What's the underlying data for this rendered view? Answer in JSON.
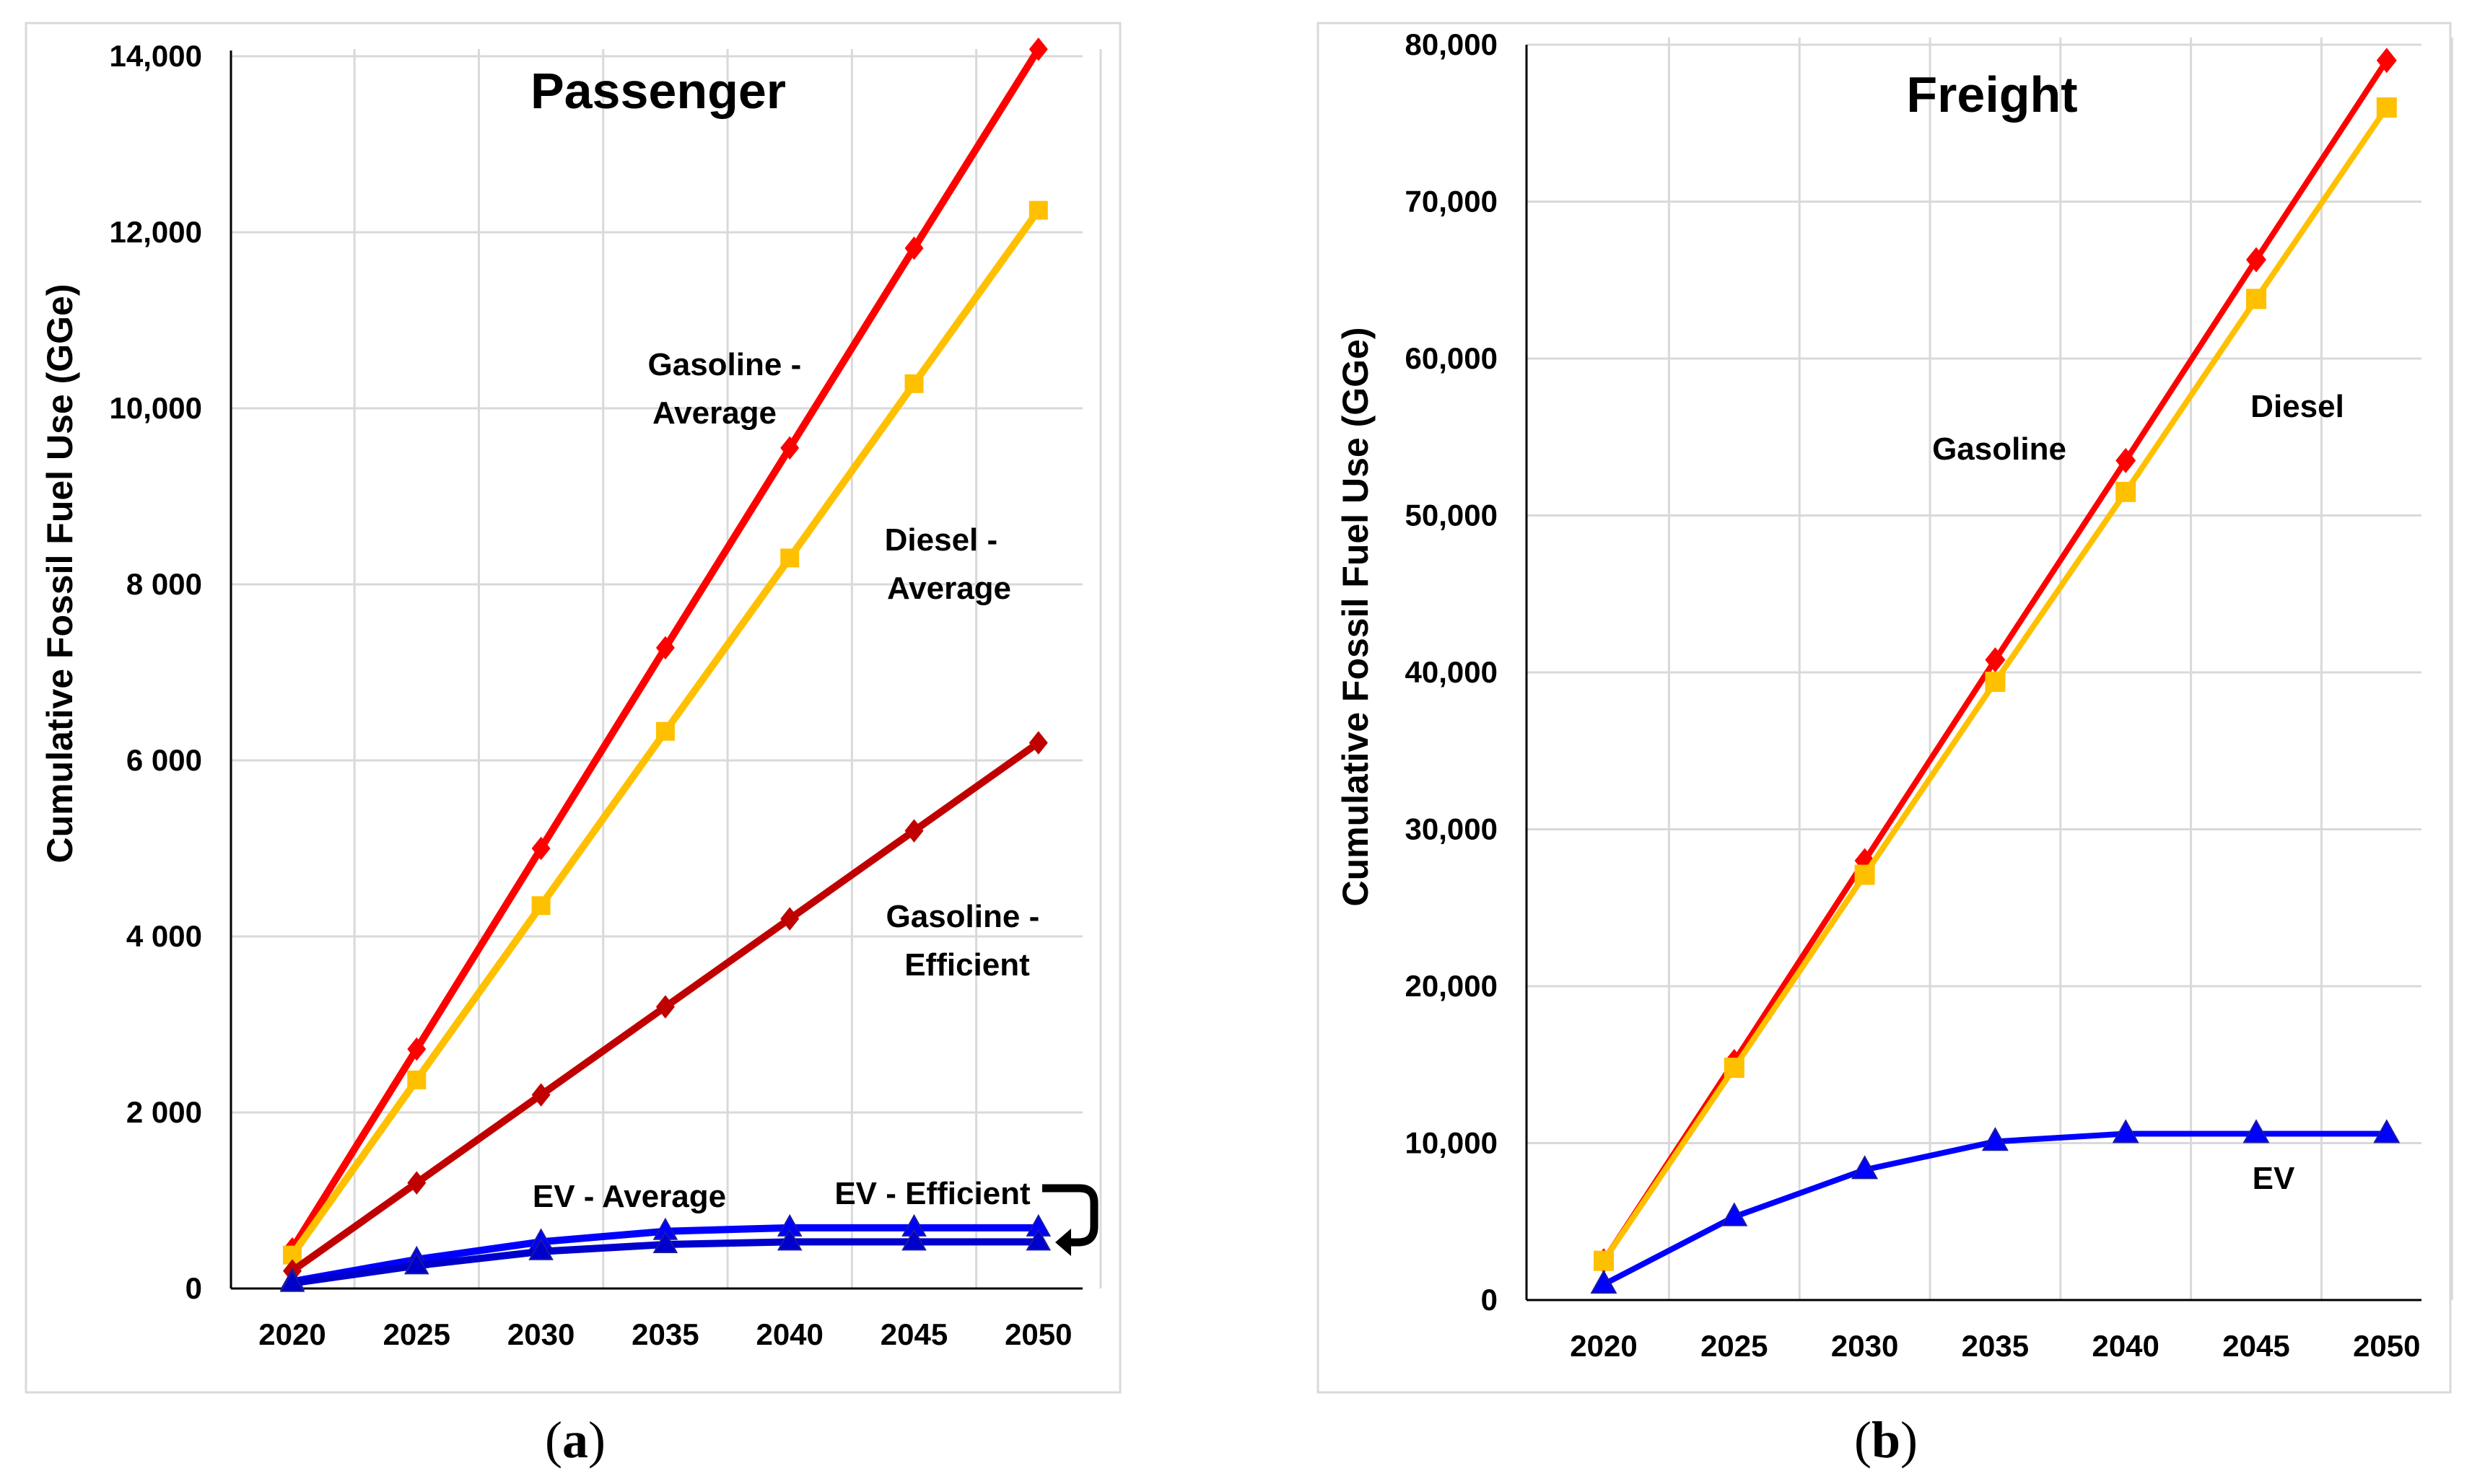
{
  "chart_data": [
    {
      "type": "line",
      "title": "Passenger",
      "xlabel": "",
      "ylabel": "Cumulative Fossil Fuel Use (GGe)",
      "categories": [
        "2020",
        "2025",
        "2030",
        "2035",
        "2040",
        "2045",
        "2050"
      ],
      "ylim": [
        0,
        14000
      ],
      "yticks": [
        0,
        2000,
        4000,
        6000,
        8000,
        10000,
        12000,
        14000
      ],
      "ytick_labels": [
        "0",
        "2 000",
        "4 000",
        "6 000",
        "8 000",
        "10,000",
        "12,000",
        "14,000"
      ],
      "grid": true,
      "series": [
        {
          "name": "Gasoline - Average",
          "color": "#ff0000",
          "marker": "diamond",
          "values": [
            450,
            2720,
            5000,
            7280,
            9550,
            11820,
            14080
          ]
        },
        {
          "name": "Diesel - Average",
          "color": "#ffc000",
          "marker": "square",
          "values": [
            380,
            2370,
            4350,
            6330,
            8300,
            10280,
            12250
          ]
        },
        {
          "name": "Gasoline - Efficient",
          "color": "#c00000",
          "marker": "diamond",
          "values": [
            200,
            1200,
            2200,
            3200,
            4200,
            5200,
            6200
          ]
        },
        {
          "name": "EV - Average",
          "color": "#0000ff",
          "marker": "triangle",
          "values": [
            80,
            330,
            530,
            650,
            690,
            690,
            690
          ]
        },
        {
          "name": "EV - Efficient",
          "color": "#0000cc",
          "marker": "triangle",
          "values": [
            60,
            260,
            420,
            500,
            530,
            530,
            530
          ]
        }
      ],
      "annotations": [
        {
          "lines": [
            "Gasoline -",
            "Average"
          ],
          "series": "Gasoline - Average"
        },
        {
          "lines": [
            "Diesel -",
            "Average"
          ],
          "series": "Diesel - Average"
        },
        {
          "lines": [
            "Gasoline -",
            "Efficient"
          ],
          "series": "Gasoline - Efficient"
        },
        {
          "lines": [
            "EV - Average"
          ],
          "series": "EV - Average"
        },
        {
          "lines": [
            "EV - Efficient"
          ],
          "series": "EV - Efficient"
        }
      ],
      "caption": "a"
    },
    {
      "type": "line",
      "title": "Freight",
      "xlabel": "",
      "ylabel": "Cumulative Fossil Fuel Use (GGe)",
      "categories": [
        "2020",
        "2025",
        "2030",
        "2035",
        "2040",
        "2045",
        "2050"
      ],
      "ylim": [
        0,
        80000
      ],
      "yticks": [
        0,
        10000,
        20000,
        30000,
        40000,
        50000,
        60000,
        70000,
        80000
      ],
      "ytick_labels": [
        "0",
        "10,000",
        "20,000",
        "30,000",
        "40,000",
        "50,000",
        "60,000",
        "70,000",
        "80,000"
      ],
      "grid": true,
      "series": [
        {
          "name": "Gasoline",
          "color": "#ff0000",
          "marker": "diamond",
          "values": [
            2500,
            15200,
            28000,
            40800,
            53500,
            66300,
            79000
          ]
        },
        {
          "name": "Diesel",
          "color": "#ffc000",
          "marker": "square",
          "values": [
            2500,
            14800,
            27100,
            39400,
            51500,
            63800,
            76000
          ]
        },
        {
          "name": "EV",
          "color": "#0000ff",
          "marker": "triangle",
          "values": [
            1000,
            5300,
            8300,
            10100,
            10600,
            10600,
            10600
          ]
        }
      ],
      "annotations": [
        {
          "lines": [
            "Gasoline"
          ],
          "series": "Gasoline"
        },
        {
          "lines": [
            "Diesel"
          ],
          "series": "Diesel"
        },
        {
          "lines": [
            "EV"
          ],
          "series": "EV"
        }
      ],
      "caption": "b"
    }
  ]
}
